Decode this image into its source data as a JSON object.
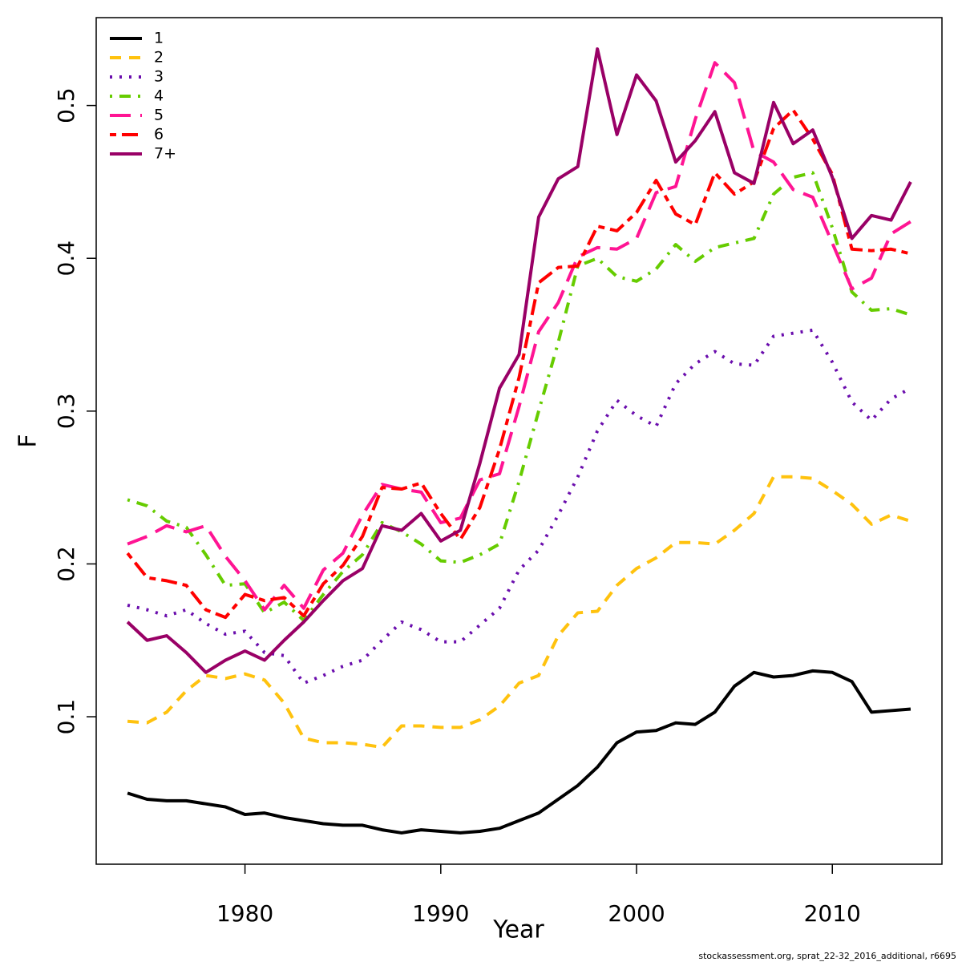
{
  "chart_data": {
    "type": "line",
    "x_label": "Year",
    "y_label": "F",
    "footnote": "stockassessment.org, sprat_22-32_2016_additional, r6695",
    "x": [
      1974,
      1975,
      1976,
      1977,
      1978,
      1979,
      1980,
      1981,
      1982,
      1983,
      1984,
      1985,
      1986,
      1987,
      1988,
      1989,
      1990,
      1991,
      1992,
      1993,
      1994,
      1995,
      1996,
      1997,
      1998,
      1999,
      2000,
      2001,
      2002,
      2003,
      2004,
      2005,
      2006,
      2007,
      2008,
      2009,
      2010,
      2011,
      2012,
      2013,
      2014
    ],
    "xlim": [
      1972.4,
      2015.6
    ],
    "xticks": [
      1980,
      1990,
      2000,
      2010
    ],
    "ylim": [
      0.0035,
      0.5575
    ],
    "yticks": [
      0.1,
      0.2,
      0.3,
      0.4,
      0.5
    ],
    "legend": "top-left",
    "series": [
      {
        "name": "1",
        "color": "#000000",
        "linestyle": "solid",
        "values": [
          0.05,
          0.046,
          0.045,
          0.045,
          0.043,
          0.041,
          0.036,
          0.037,
          0.034,
          0.032,
          0.03,
          0.029,
          0.029,
          0.026,
          0.024,
          0.026,
          0.025,
          0.024,
          0.025,
          0.027,
          0.032,
          0.037,
          0.046,
          0.055,
          0.067,
          0.083,
          0.09,
          0.091,
          0.096,
          0.095,
          0.103,
          0.12,
          0.129,
          0.126,
          0.127,
          0.13,
          0.129,
          0.123,
          0.103,
          0.104,
          0.105
        ]
      },
      {
        "name": "2",
        "color": "#FFC20E",
        "linestyle": "dashed",
        "values": [
          0.097,
          0.096,
          0.103,
          0.117,
          0.127,
          0.125,
          0.128,
          0.124,
          0.109,
          0.086,
          0.083,
          0.083,
          0.082,
          0.08,
          0.094,
          0.094,
          0.093,
          0.093,
          0.098,
          0.107,
          0.122,
          0.127,
          0.153,
          0.168,
          0.169,
          0.186,
          0.197,
          0.204,
          0.214,
          0.214,
          0.213,
          0.222,
          0.233,
          0.257,
          0.257,
          0.256,
          0.248,
          0.239,
          0.226,
          0.232,
          0.228
        ]
      },
      {
        "name": "3",
        "color": "#6A0DAD",
        "linestyle": "dotted",
        "values": [
          0.173,
          0.17,
          0.166,
          0.17,
          0.161,
          0.154,
          0.156,
          0.142,
          0.14,
          0.122,
          0.127,
          0.133,
          0.137,
          0.15,
          0.162,
          0.157,
          0.149,
          0.149,
          0.16,
          0.171,
          0.196,
          0.209,
          0.232,
          0.257,
          0.287,
          0.307,
          0.297,
          0.29,
          0.318,
          0.331,
          0.339,
          0.331,
          0.33,
          0.349,
          0.351,
          0.353,
          0.332,
          0.306,
          0.294,
          0.308,
          0.315
        ]
      },
      {
        "name": "4",
        "color": "#66CC00",
        "linestyle": "dotdash",
        "values": [
          0.242,
          0.238,
          0.228,
          0.224,
          0.206,
          0.186,
          0.187,
          0.168,
          0.175,
          0.163,
          0.18,
          0.195,
          0.206,
          0.227,
          0.221,
          0.213,
          0.202,
          0.201,
          0.206,
          0.213,
          0.254,
          0.3,
          0.345,
          0.395,
          0.4,
          0.388,
          0.385,
          0.393,
          0.409,
          0.398,
          0.407,
          0.41,
          0.413,
          0.442,
          0.453,
          0.456,
          0.42,
          0.378,
          0.366,
          0.367,
          0.363
        ]
      },
      {
        "name": "5",
        "color": "#FF1493",
        "linestyle": "longdash",
        "values": [
          0.213,
          0.218,
          0.225,
          0.221,
          0.225,
          0.205,
          0.189,
          0.17,
          0.186,
          0.171,
          0.196,
          0.207,
          0.232,
          0.252,
          0.249,
          0.247,
          0.227,
          0.23,
          0.255,
          0.259,
          0.303,
          0.352,
          0.371,
          0.401,
          0.407,
          0.406,
          0.413,
          0.443,
          0.447,
          0.491,
          0.528,
          0.515,
          0.47,
          0.463,
          0.445,
          0.44,
          0.41,
          0.38,
          0.387,
          0.416,
          0.424
        ]
      },
      {
        "name": "6",
        "color": "#FF0000",
        "linestyle": "twodash",
        "values": [
          0.207,
          0.191,
          0.189,
          0.186,
          0.17,
          0.165,
          0.18,
          0.176,
          0.178,
          0.166,
          0.187,
          0.199,
          0.218,
          0.25,
          0.249,
          0.253,
          0.233,
          0.216,
          0.237,
          0.275,
          0.322,
          0.384,
          0.394,
          0.395,
          0.421,
          0.418,
          0.43,
          0.451,
          0.429,
          0.422,
          0.456,
          0.442,
          0.45,
          0.485,
          0.497,
          0.478,
          0.455,
          0.406,
          0.405,
          0.406,
          0.403
        ]
      },
      {
        "name": "7+",
        "color": "#990066",
        "linestyle": "solid",
        "values": [
          0.162,
          0.15,
          0.153,
          0.142,
          0.129,
          0.137,
          0.143,
          0.137,
          0.15,
          0.162,
          0.176,
          0.189,
          0.197,
          0.225,
          0.222,
          0.233,
          0.215,
          0.222,
          0.266,
          0.315,
          0.337,
          0.427,
          0.452,
          0.46,
          0.537,
          0.481,
          0.52,
          0.503,
          0.463,
          0.477,
          0.496,
          0.456,
          0.449,
          0.502,
          0.475,
          0.484,
          0.453,
          0.413,
          0.428,
          0.425,
          0.45
        ]
      }
    ]
  }
}
